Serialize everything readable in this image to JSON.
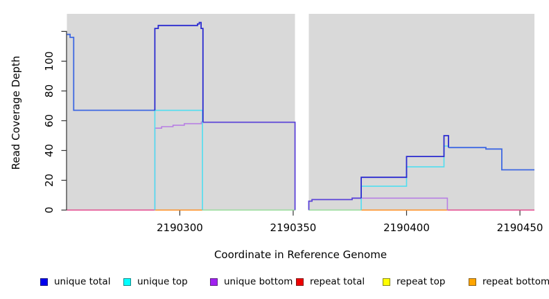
{
  "figure": {
    "background": "#ffffff",
    "plot_background": "#d9d9d9",
    "axis_color": "#333333",
    "tick_label_color": "#000000"
  },
  "chart_data": {
    "type": "line",
    "subtype": "step-coverage",
    "title": "",
    "xlabel": "Coordinate in Reference Genome",
    "ylabel": "Read Coverage Depth",
    "xlim": [
      2190250.2,
      2190456.4
    ],
    "ylim": [
      0,
      131.8
    ],
    "grid": "off",
    "legend_position": "bottom",
    "x_ticks": [
      {
        "value": 2190300,
        "label": "2190300"
      },
      {
        "value": 2190350,
        "label": "2190350"
      },
      {
        "value": 2190400,
        "label": "2190400"
      },
      {
        "value": 2190450,
        "label": "2190450"
      }
    ],
    "y_ticks": [
      {
        "value": 0,
        "label": "0"
      },
      {
        "value": 20,
        "label": "20"
      },
      {
        "value": 40,
        "label": "40"
      },
      {
        "value": 60,
        "label": "60"
      },
      {
        "value": 80,
        "label": "80"
      },
      {
        "value": 100,
        "label": "100"
      },
      {
        "value": 120,
        "label": ""
      }
    ],
    "gap": {
      "note": "white no-data band",
      "x_start": 2190350.8,
      "x_end": 2190356.9
    },
    "series": [
      {
        "name": "unique total",
        "color": "#0000EE",
        "steps": [
          [
            2190251,
            118
          ],
          [
            2190252,
            116
          ],
          [
            2190253,
            67
          ],
          [
            2190289,
            124
          ],
          [
            2190308,
            126
          ],
          [
            2190309,
            122
          ],
          [
            2190310,
            59
          ],
          [
            2190357,
            6
          ],
          [
            2190358,
            7
          ],
          [
            2190376,
            8
          ],
          [
            2190380,
            22
          ],
          [
            2190400,
            36
          ],
          [
            2190416,
            50
          ],
          [
            2190418,
            42
          ],
          [
            2190435,
            41
          ],
          [
            2190442,
            27
          ],
          [
            2190456,
            27
          ]
        ]
      },
      {
        "name": "unique top",
        "color": "#00FFFF",
        "steps": [
          [
            2190251,
            0
          ],
          [
            2190289,
            67
          ],
          [
            2190310,
            0
          ],
          [
            2190380,
            16
          ],
          [
            2190400,
            29
          ],
          [
            2190416,
            43
          ],
          [
            2190418,
            43
          ]
        ]
      },
      {
        "name": "unique bottom",
        "color": "#A020F0",
        "steps": [
          [
            2190251,
            0
          ],
          [
            2190289,
            55
          ],
          [
            2190292,
            56
          ],
          [
            2190297,
            57
          ],
          [
            2190302,
            58
          ],
          [
            2190310,
            59
          ],
          [
            2190357,
            6
          ],
          [
            2190358,
            7
          ],
          [
            2190376,
            8
          ],
          [
            2190418,
            0
          ]
        ]
      },
      {
        "name": "repeat total",
        "color": "#EE0000",
        "steps": [
          [
            2190251,
            0
          ],
          [
            2190456,
            0
          ]
        ]
      },
      {
        "name": "repeat top",
        "color": "#FFFF00",
        "steps": [
          [
            2190251,
            0
          ],
          [
            2190456,
            0
          ]
        ]
      },
      {
        "name": "repeat bottom",
        "color": "#FFA500",
        "steps": [
          [
            2190251,
            0
          ],
          [
            2190456,
            0
          ]
        ]
      }
    ],
    "render_segments": [
      {
        "name": "zero-line-left",
        "color": "#E2478B",
        "width": 1.5,
        "pts": [
          [
            2190250.2,
            0
          ],
          [
            2190289,
            0
          ]
        ]
      },
      {
        "name": "zero-line-peak",
        "color": "#FF8C1E",
        "width": 1.5,
        "pts": [
          [
            2190289,
            0
          ],
          [
            2190310,
            0
          ]
        ]
      },
      {
        "name": "zero-line-mid",
        "color": "#97DB99",
        "width": 1.5,
        "pts": [
          [
            2190310,
            0
          ],
          [
            2190350.8,
            0
          ]
        ]
      },
      {
        "name": "zero-line-postgap",
        "color": "#97DB99",
        "width": 1.5,
        "pts": [
          [
            2190356.9,
            0
          ],
          [
            2190380,
            0
          ]
        ]
      },
      {
        "name": "zero-line-orange",
        "color": "#FF8C1E",
        "width": 1.5,
        "pts": [
          [
            2190380,
            0
          ],
          [
            2190418,
            0
          ]
        ]
      },
      {
        "name": "zero-line-right",
        "color": "#E2478B",
        "width": 1.5,
        "pts": [
          [
            2190418,
            0
          ],
          [
            2190456.4,
            0
          ]
        ]
      },
      {
        "name": "unique-bottom-peak",
        "color": "#B77FE3",
        "width": 1.6,
        "pts": [
          [
            2190289,
            0
          ],
          [
            2190289,
            55
          ],
          [
            2190292,
            55
          ],
          [
            2190292,
            56
          ],
          [
            2190297,
            56
          ],
          [
            2190297,
            57
          ],
          [
            2190302,
            57
          ],
          [
            2190302,
            58
          ],
          [
            2190309.5,
            58
          ],
          [
            2190309.5,
            59.5
          ]
        ]
      },
      {
        "name": "unique-bottom-right",
        "color": "#B77FE3",
        "width": 1.6,
        "pts": [
          [
            2190380,
            8
          ],
          [
            2190418,
            8
          ],
          [
            2190418,
            0
          ]
        ]
      },
      {
        "name": "unique-top-peak",
        "color": "#4FDEF0",
        "width": 1.6,
        "pts": [
          [
            2190289,
            0
          ],
          [
            2190289,
            67
          ],
          [
            2190310,
            67
          ],
          [
            2190310,
            0
          ]
        ]
      },
      {
        "name": "unique-top-right",
        "color": "#4FDEF0",
        "width": 1.6,
        "pts": [
          [
            2190380,
            0
          ],
          [
            2190380,
            16
          ],
          [
            2190400,
            16
          ],
          [
            2190400,
            29
          ],
          [
            2190416.5,
            29
          ],
          [
            2190416.5,
            43
          ],
          [
            2190418.5,
            43
          ]
        ]
      },
      {
        "name": "unique-total-left",
        "color": "#3E68E2",
        "width": 1.8,
        "pts": [
          [
            2190250.2,
            118
          ],
          [
            2190251.6,
            118
          ],
          [
            2190251.6,
            116
          ],
          [
            2190253.2,
            116
          ],
          [
            2190253.2,
            67
          ],
          [
            2190289,
            67
          ]
        ]
      },
      {
        "name": "unique-total-peak",
        "color": "#2B2BD0",
        "width": 1.8,
        "pts": [
          [
            2190289,
            67
          ],
          [
            2190289,
            122
          ],
          [
            2190290.5,
            122
          ],
          [
            2190290.5,
            124
          ],
          [
            2190307.8,
            124
          ],
          [
            2190307.8,
            125
          ],
          [
            2190308.6,
            125
          ],
          [
            2190308.6,
            126
          ],
          [
            2190309.4,
            126
          ],
          [
            2190309.4,
            122
          ],
          [
            2190310.2,
            122
          ],
          [
            2190310.2,
            59
          ]
        ]
      },
      {
        "name": "total-bottom-merged-mid",
        "color": "#5B43D8",
        "width": 1.8,
        "pts": [
          [
            2190310.2,
            59
          ],
          [
            2190350.8,
            59
          ],
          [
            2190350.8,
            0
          ]
        ]
      },
      {
        "name": "total-bottom-merged-postgap",
        "color": "#5B43D8",
        "width": 1.8,
        "pts": [
          [
            2190356.9,
            0
          ],
          [
            2190356.9,
            6
          ],
          [
            2190358.3,
            6
          ],
          [
            2190358.3,
            7
          ],
          [
            2190376,
            7
          ],
          [
            2190376,
            8
          ],
          [
            2190380,
            8
          ]
        ]
      },
      {
        "name": "unique-total-steps-right",
        "color": "#2B2BD0",
        "width": 1.8,
        "pts": [
          [
            2190380,
            8
          ],
          [
            2190380,
            22
          ],
          [
            2190400,
            22
          ],
          [
            2190400,
            36
          ],
          [
            2190416.5,
            36
          ],
          [
            2190416.5,
            50
          ],
          [
            2190418.5,
            50
          ],
          [
            2190418.5,
            42
          ]
        ]
      },
      {
        "name": "unique-total-right",
        "color": "#3E68E2",
        "width": 1.8,
        "pts": [
          [
            2190418.5,
            42
          ],
          [
            2190435,
            42
          ],
          [
            2190435,
            41
          ],
          [
            2190442,
            41
          ],
          [
            2190442,
            27
          ],
          [
            2190456.4,
            27
          ]
        ]
      }
    ]
  },
  "legend": {
    "items": [
      {
        "label": "unique total",
        "color": "#0000EE"
      },
      {
        "label": "unique top",
        "color": "#00FFFF"
      },
      {
        "label": "unique bottom",
        "color": "#A020F0"
      },
      {
        "label": "repeat total",
        "color": "#EE0000"
      },
      {
        "label": "repeat top",
        "color": "#FFFF00"
      },
      {
        "label": "repeat bottom",
        "color": "#FFA500"
      }
    ]
  }
}
